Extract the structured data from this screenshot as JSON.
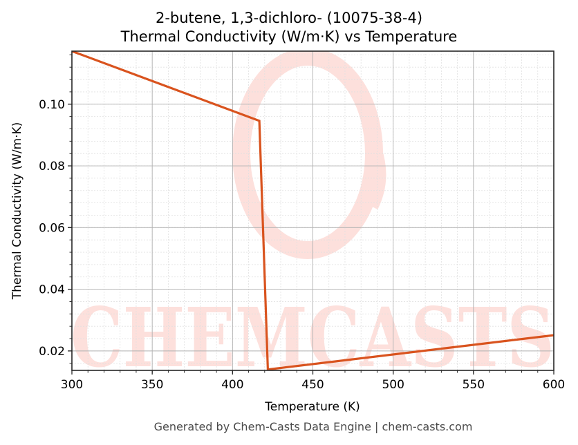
{
  "chart_data": {
    "type": "line",
    "title": "2-butene, 1,3-dichloro- (10075-38-4)",
    "subtitle": "Thermal Conductivity (W/m·K) vs Temperature",
    "xlabel": "Temperature (K)",
    "ylabel": "Thermal Conductivity (W/m·K)",
    "xlim": [
      300,
      600
    ],
    "ylim": [
      0.0137,
      0.1172
    ],
    "xticks": [
      300,
      350,
      400,
      450,
      500,
      550,
      600
    ],
    "xtick_labels": [
      "300",
      "350",
      "400",
      "450",
      "500",
      "550",
      "600"
    ],
    "yticks": [
      0.02,
      0.04,
      0.06,
      0.08,
      0.1
    ],
    "ytick_labels": [
      "0.02",
      "0.04",
      "0.06",
      "0.08",
      "0.10"
    ],
    "grid": true,
    "minor_grid": true,
    "legend": null,
    "series": [
      {
        "name": "Thermal Conductivity",
        "color": "#d9531e",
        "x": [
          300,
          416.7,
          422.0,
          600
        ],
        "y": [
          0.1172,
          0.0946,
          0.014,
          0.0251
        ]
      }
    ],
    "watermark": "CHEMCASTS"
  },
  "header": {
    "title": "2-butene, 1,3-dichloro- (10075-38-4)",
    "subtitle": "Thermal Conductivity (W/m·K) vs Temperature"
  },
  "footer": {
    "text": "Generated by Chem-Casts Data Engine | chem-casts.com"
  },
  "colors": {
    "line": "#d9531e",
    "watermark": "#fde0dc",
    "grid_major": "#b0b0b0",
    "grid_minor": "#e0e0e0",
    "axes": "#262626",
    "footer_text": "#4a4a4a"
  }
}
